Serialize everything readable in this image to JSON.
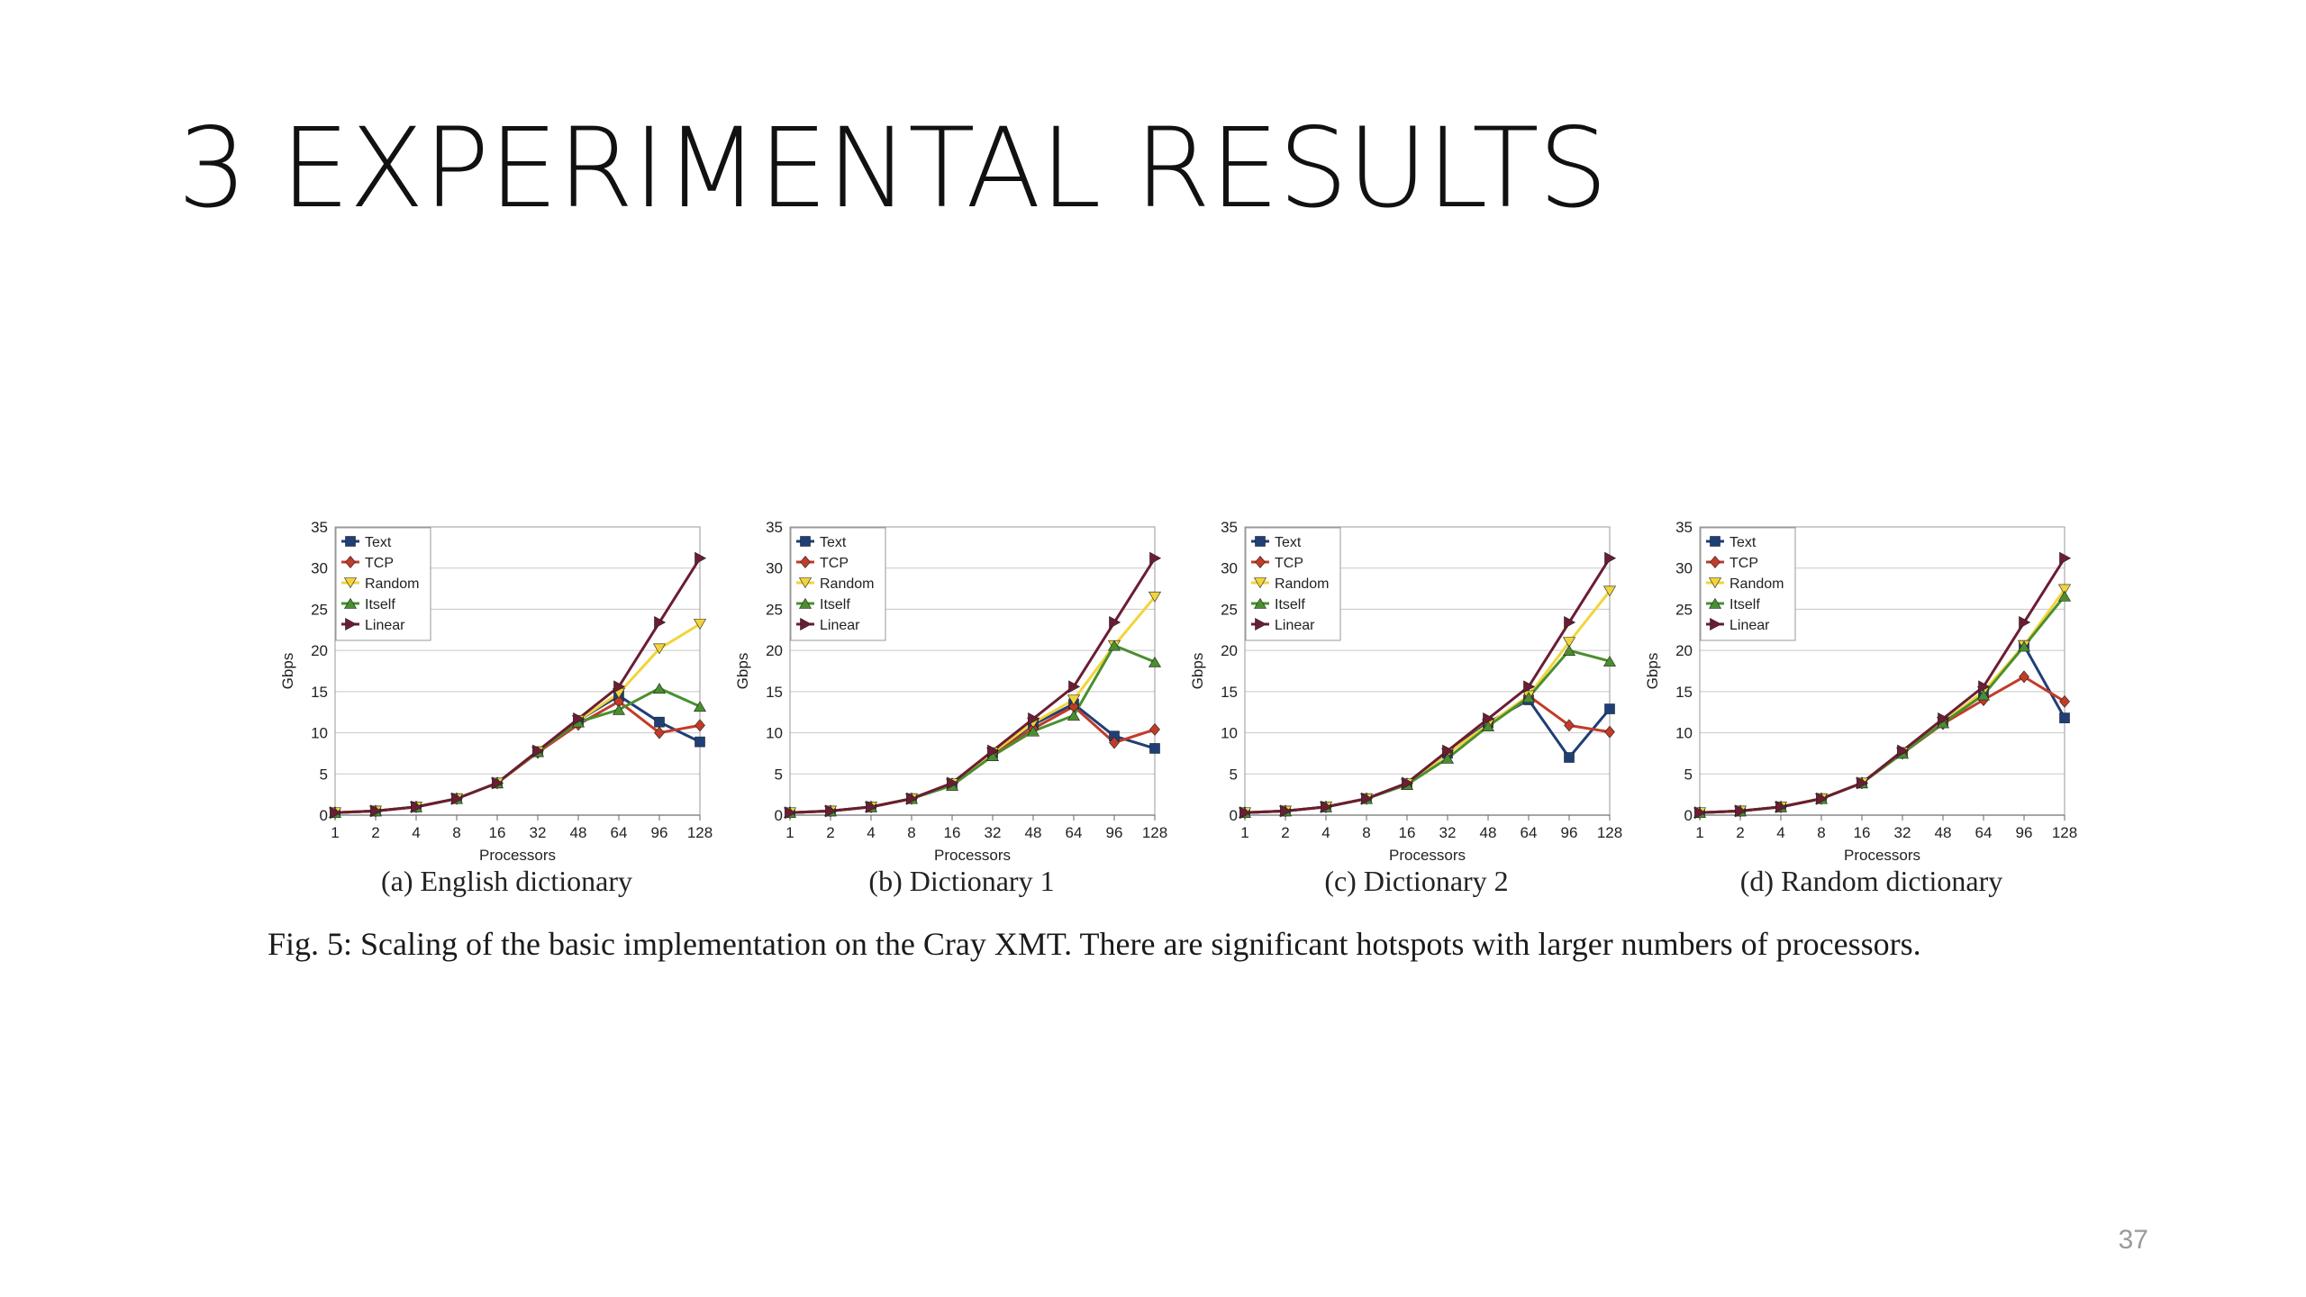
{
  "slide": {
    "title": "3 EXPERIMENTAL RESULTS",
    "page_number": "37",
    "caption": "Fig. 5: Scaling of the basic implementation on the Cray XMT. There are significant hotspots with larger numbers of processors."
  },
  "series_colors": {
    "Text": "#1f3f77",
    "TCP": "#c23b28",
    "Random": "#f2d43a",
    "Itself": "#4a8f2f",
    "Linear": "#6b1d33"
  },
  "chart_data": [
    {
      "type": "line",
      "subcaption": "(a) English dictionary",
      "xlabel": "Processors",
      "ylabel": "Gbps",
      "categories": [
        "1",
        "2",
        "4",
        "8",
        "16",
        "32",
        "48",
        "64",
        "96",
        "128"
      ],
      "ylim": [
        0,
        35
      ],
      "yticks": [
        0,
        5,
        10,
        15,
        20,
        25,
        30,
        35
      ],
      "grid": true,
      "legend_position": "top-left",
      "series": [
        {
          "name": "Text",
          "values": [
            0.3,
            0.5,
            1.0,
            2.0,
            3.9,
            7.7,
            11.5,
            14.5,
            11.3,
            8.9
          ]
        },
        {
          "name": "TCP",
          "values": [
            0.3,
            0.5,
            1.0,
            2.0,
            3.9,
            7.6,
            11.0,
            13.8,
            10.0,
            10.9
          ]
        },
        {
          "name": "Random",
          "values": [
            0.3,
            0.5,
            1.0,
            2.0,
            3.9,
            7.7,
            11.5,
            14.8,
            20.2,
            23.2
          ]
        },
        {
          "name": "Itself",
          "values": [
            0.3,
            0.5,
            1.0,
            2.0,
            3.9,
            7.7,
            11.3,
            12.8,
            15.4,
            13.2
          ]
        },
        {
          "name": "Linear",
          "values": [
            0.3,
            0.5,
            1.0,
            2.0,
            3.9,
            7.8,
            11.7,
            15.6,
            23.4,
            31.2
          ]
        }
      ]
    },
    {
      "type": "line",
      "subcaption": "(b) Dictionary 1",
      "xlabel": "Processors",
      "ylabel": "Gbps",
      "categories": [
        "1",
        "2",
        "4",
        "8",
        "16",
        "32",
        "48",
        "64",
        "96",
        "128"
      ],
      "ylim": [
        0,
        35
      ],
      "yticks": [
        0,
        5,
        10,
        15,
        20,
        25,
        30,
        35
      ],
      "grid": true,
      "legend_position": "top-left",
      "series": [
        {
          "name": "Text",
          "values": [
            0.3,
            0.5,
            1.0,
            2.0,
            3.8,
            7.5,
            11.0,
            13.5,
            9.6,
            8.1
          ]
        },
        {
          "name": "TCP",
          "values": [
            0.3,
            0.5,
            1.0,
            2.0,
            3.8,
            7.4,
            10.5,
            13.2,
            8.8,
            10.4
          ]
        },
        {
          "name": "Random",
          "values": [
            0.3,
            0.5,
            1.0,
            2.0,
            3.8,
            7.6,
            11.2,
            14.0,
            20.6,
            26.5
          ]
        },
        {
          "name": "Itself",
          "values": [
            0.3,
            0.5,
            1.0,
            2.0,
            3.6,
            7.2,
            10.2,
            12.1,
            20.6,
            18.6
          ]
        },
        {
          "name": "Linear",
          "values": [
            0.3,
            0.5,
            1.0,
            2.0,
            3.9,
            7.8,
            11.7,
            15.6,
            23.4,
            31.2
          ]
        }
      ]
    },
    {
      "type": "line",
      "subcaption": "(c) Dictionary 2",
      "xlabel": "Processors",
      "ylabel": "Gbps",
      "categories": [
        "1",
        "2",
        "4",
        "8",
        "16",
        "32",
        "48",
        "64",
        "96",
        "128"
      ],
      "ylim": [
        0,
        35
      ],
      "yticks": [
        0,
        5,
        10,
        15,
        20,
        25,
        30,
        35
      ],
      "grid": true,
      "legend_position": "top-left",
      "series": [
        {
          "name": "Text",
          "values": [
            0.3,
            0.5,
            1.0,
            2.0,
            3.8,
            7.5,
            11.2,
            14.0,
            7.0,
            12.9
          ]
        },
        {
          "name": "TCP",
          "values": [
            0.3,
            0.5,
            1.0,
            2.0,
            3.8,
            7.5,
            11.0,
            14.5,
            10.9,
            10.1
          ]
        },
        {
          "name": "Random",
          "values": [
            0.3,
            0.5,
            1.0,
            2.0,
            3.8,
            7.5,
            11.0,
            14.5,
            21.0,
            27.2
          ]
        },
        {
          "name": "Itself",
          "values": [
            0.3,
            0.5,
            1.0,
            2.0,
            3.7,
            6.9,
            10.8,
            14.3,
            20.0,
            18.7
          ]
        },
        {
          "name": "Linear",
          "values": [
            0.3,
            0.5,
            1.0,
            2.0,
            3.9,
            7.8,
            11.7,
            15.6,
            23.4,
            31.2
          ]
        }
      ]
    },
    {
      "type": "line",
      "subcaption": "(d) Random dictionary",
      "xlabel": "Processors",
      "ylabel": "Gbps",
      "categories": [
        "1",
        "2",
        "4",
        "8",
        "16",
        "32",
        "48",
        "64",
        "96",
        "128"
      ],
      "ylim": [
        0,
        35
      ],
      "yticks": [
        0,
        5,
        10,
        15,
        20,
        25,
        30,
        35
      ],
      "grid": true,
      "legend_position": "top-left",
      "series": [
        {
          "name": "Text",
          "values": [
            0.3,
            0.5,
            1.0,
            2.0,
            3.9,
            7.6,
            11.3,
            14.8,
            20.6,
            11.8
          ]
        },
        {
          "name": "TCP",
          "values": [
            0.3,
            0.5,
            1.0,
            2.0,
            3.9,
            7.5,
            11.1,
            14.0,
            16.8,
            13.8
          ]
        },
        {
          "name": "Random",
          "values": [
            0.3,
            0.5,
            1.0,
            2.0,
            3.9,
            7.6,
            11.3,
            15.0,
            20.6,
            27.4
          ]
        },
        {
          "name": "Itself",
          "values": [
            0.3,
            0.5,
            1.0,
            2.0,
            3.9,
            7.5,
            11.2,
            14.6,
            20.5,
            26.6
          ]
        },
        {
          "name": "Linear",
          "values": [
            0.3,
            0.5,
            1.0,
            2.0,
            3.9,
            7.8,
            11.7,
            15.6,
            23.4,
            31.2
          ]
        }
      ]
    }
  ]
}
